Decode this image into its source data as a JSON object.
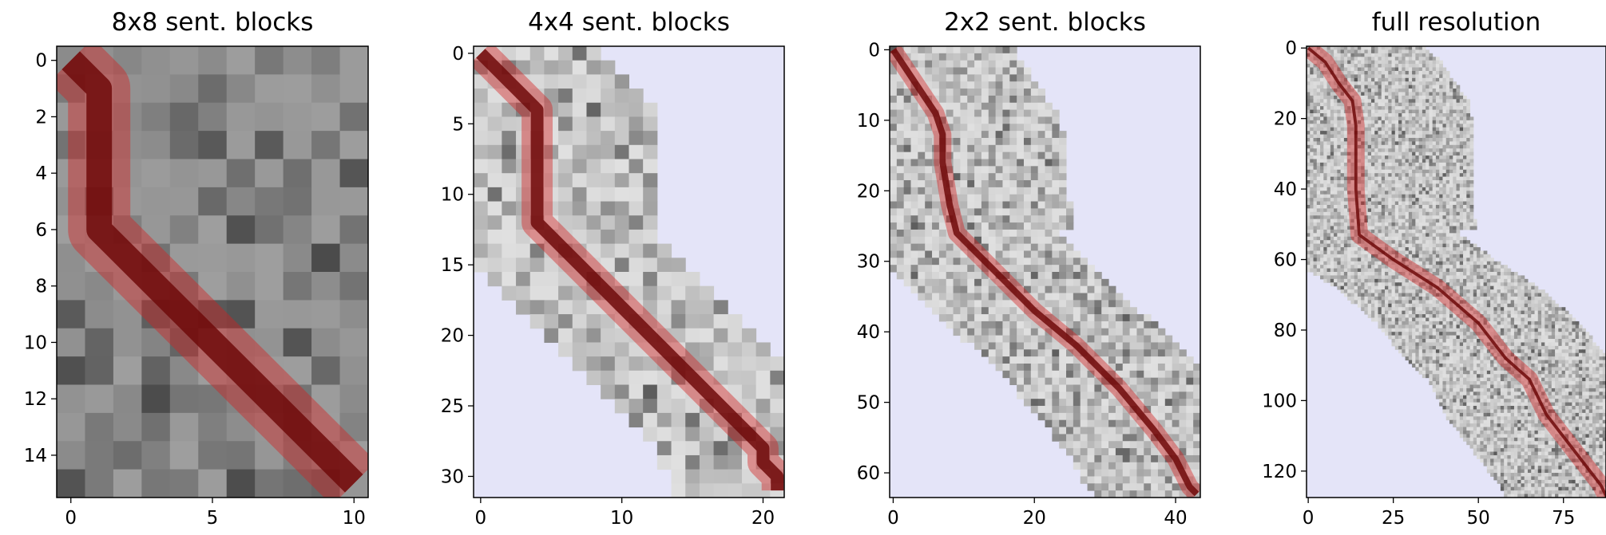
{
  "chart_data": [
    {
      "type": "heatmap",
      "title": "8x8 sent. blocks",
      "n_cols": 11,
      "n_rows": 16,
      "xlim": [
        -0.5,
        10.5
      ],
      "ylim": [
        15.5,
        -0.5
      ],
      "xticks": [
        0,
        5,
        10
      ],
      "yticks": [
        0,
        2,
        4,
        6,
        8,
        10,
        12,
        14
      ],
      "band": "lower",
      "path": [
        [
          0,
          0
        ],
        [
          1,
          1
        ],
        [
          1,
          2
        ],
        [
          1,
          3
        ],
        [
          1,
          4
        ],
        [
          1,
          5
        ],
        [
          1,
          6
        ],
        [
          2,
          7
        ],
        [
          3,
          8
        ],
        [
          4,
          9
        ],
        [
          5,
          10
        ],
        [
          6,
          11
        ],
        [
          7,
          12
        ],
        [
          8,
          13
        ],
        [
          9,
          14
        ],
        [
          10,
          15
        ]
      ]
    },
    {
      "type": "heatmap",
      "title": "4x4 sent. blocks",
      "n_cols": 22,
      "n_rows": 32,
      "xlim": [
        -0.5,
        21.5
      ],
      "ylim": [
        31.5,
        -0.5
      ],
      "xticks": [
        0,
        10,
        20
      ],
      "yticks": [
        0,
        5,
        10,
        15,
        20,
        25,
        30
      ],
      "band": "diagonal",
      "path": [
        [
          0,
          0
        ],
        [
          1,
          1
        ],
        [
          2,
          2
        ],
        [
          3,
          3
        ],
        [
          4,
          4
        ],
        [
          4,
          5
        ],
        [
          4,
          6
        ],
        [
          4,
          7
        ],
        [
          4,
          8
        ],
        [
          4,
          9
        ],
        [
          4,
          10
        ],
        [
          4,
          11
        ],
        [
          4,
          12
        ],
        [
          5,
          13
        ],
        [
          6,
          14
        ],
        [
          7,
          15
        ],
        [
          8,
          16
        ],
        [
          9,
          17
        ],
        [
          10,
          18
        ],
        [
          11,
          19
        ],
        [
          12,
          20
        ],
        [
          13,
          21
        ],
        [
          14,
          22
        ],
        [
          15,
          23
        ],
        [
          16,
          24
        ],
        [
          17,
          25
        ],
        [
          18,
          26
        ],
        [
          19,
          27
        ],
        [
          20,
          28
        ],
        [
          20,
          29
        ],
        [
          21,
          30
        ],
        [
          21,
          31
        ]
      ]
    },
    {
      "type": "heatmap",
      "title": "2x2 sent. blocks",
      "n_cols": 44,
      "n_rows": 64,
      "xlim": [
        -0.5,
        43.5
      ],
      "ylim": [
        63.5,
        -0.5
      ],
      "xticks": [
        0,
        20,
        40
      ],
      "yticks": [
        0,
        10,
        20,
        30,
        40,
        50,
        60
      ],
      "band": "diagonal",
      "path": [
        [
          0,
          0
        ],
        [
          2,
          3
        ],
        [
          4,
          6
        ],
        [
          6,
          9
        ],
        [
          7,
          12
        ],
        [
          7,
          16
        ],
        [
          8,
          22
        ],
        [
          9,
          26
        ],
        [
          14,
          31
        ],
        [
          20,
          37
        ],
        [
          26,
          42
        ],
        [
          32,
          48
        ],
        [
          37,
          54
        ],
        [
          40,
          58
        ],
        [
          42,
          62
        ],
        [
          43,
          63
        ]
      ]
    },
    {
      "type": "heatmap",
      "title": "full resolution",
      "n_cols": 88,
      "n_rows": 128,
      "xlim": [
        -0.5,
        87.5
      ],
      "ylim": [
        127.5,
        -0.5
      ],
      "xticks": [
        0,
        25,
        50,
        75
      ],
      "yticks": [
        0,
        20,
        40,
        60,
        80,
        100,
        120
      ],
      "band": "diagonal",
      "path": [
        [
          0,
          0
        ],
        [
          5,
          4
        ],
        [
          9,
          10
        ],
        [
          13,
          15
        ],
        [
          14,
          22
        ],
        [
          14,
          40
        ],
        [
          15,
          53
        ],
        [
          25,
          60
        ],
        [
          38,
          68
        ],
        [
          50,
          78
        ],
        [
          58,
          88
        ],
        [
          65,
          94
        ],
        [
          70,
          104
        ],
        [
          78,
          114
        ],
        [
          86,
          124
        ],
        [
          88,
          128
        ]
      ]
    }
  ]
}
